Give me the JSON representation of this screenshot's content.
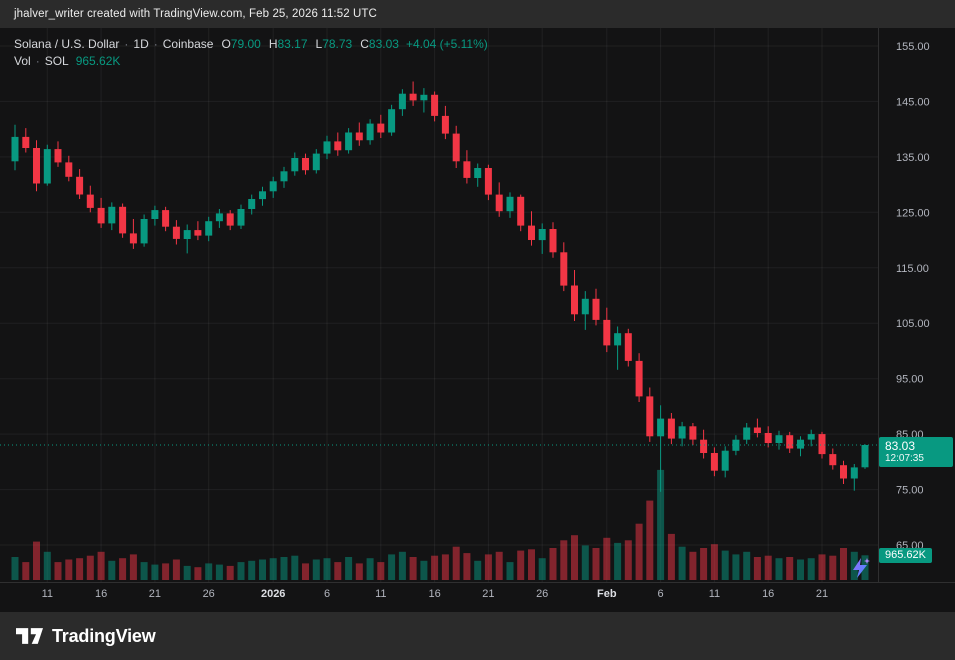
{
  "top_bar": {
    "attribution": "jhalver_writer created with TradingView.com, Feb 25, 2026 11:52 UTC"
  },
  "header": {
    "symbol": "Solana / U.S. Dollar",
    "sep": "·",
    "interval": "1D",
    "exchange": "Coinbase",
    "ohlc": [
      {
        "label": "O",
        "value": "79.00"
      },
      {
        "label": "H",
        "value": "83.17"
      },
      {
        "label": "L",
        "value": "78.73"
      },
      {
        "label": "C",
        "value": "83.03"
      }
    ],
    "change": "+4.04 (+5.11%)",
    "vol_label": "Vol",
    "vol_unit": "SOL",
    "vol_value": "965.62K"
  },
  "price_label": {
    "price": "83.03",
    "countdown": "12:07:35"
  },
  "volume_label": {
    "value": "965.62K"
  },
  "footer": {
    "brand": "TradingView"
  },
  "colors": {
    "up": "#089981",
    "down": "#f23645",
    "background": "#131314",
    "panel": "#2b2b2b",
    "grid": "rgba(255,255,255,0.06)",
    "axis_text": "#b2b5be",
    "axis_text_major": "#dcdee3",
    "label_bg": "#089981"
  },
  "chart_data": {
    "type": "candlestick",
    "title": "Solana / U.S. Dollar, 1D, Coinbase",
    "ylabel": "Price (USD)",
    "y_ticks": [
      155,
      145,
      135,
      125,
      115,
      105,
      95,
      85,
      75,
      65
    ],
    "y_tick_format": "2dp",
    "x_ticks": [
      [
        "11",
        3,
        0
      ],
      [
        "16",
        8,
        0
      ],
      [
        "21",
        13,
        0
      ],
      [
        "26",
        18,
        0
      ],
      [
        "2026",
        24,
        1
      ],
      [
        "6",
        29,
        0
      ],
      [
        "11",
        34,
        0
      ],
      [
        "16",
        39,
        0
      ],
      [
        "21",
        44,
        0
      ],
      [
        "26",
        49,
        0
      ],
      [
        "Feb",
        55,
        1
      ],
      [
        "6",
        60,
        0
      ],
      [
        "11",
        65,
        0
      ],
      [
        "16",
        70,
        0
      ],
      [
        "21",
        75,
        0
      ]
    ],
    "volume_unit": "K",
    "last": {
      "open": 79.0,
      "high": 83.17,
      "low": 78.73,
      "close": 83.03,
      "change": "+4.04 (+5.11%)",
      "volume": "965.62K",
      "countdown": "12:07:35"
    },
    "columns": [
      "date",
      "open",
      "high",
      "low",
      "close",
      "volume_K"
    ],
    "candles": [
      [
        "Dec 8",
        134.2,
        140.8,
        132.6,
        138.6,
        900
      ],
      [
        "Dec 9",
        138.6,
        140.2,
        135.8,
        136.6,
        700
      ],
      [
        "Dec 10",
        136.6,
        138.0,
        128.8,
        130.2,
        1500
      ],
      [
        "Dec 11",
        130.2,
        137.2,
        129.8,
        136.4,
        1100
      ],
      [
        "Dec 12",
        136.4,
        137.8,
        133.2,
        134.0,
        700
      ],
      [
        "Dec 13",
        134.0,
        135.2,
        130.6,
        131.4,
        800
      ],
      [
        "Dec 14",
        131.4,
        132.8,
        127.4,
        128.2,
        850
      ],
      [
        "Dec 15",
        128.2,
        129.8,
        125.0,
        125.8,
        950
      ],
      [
        "Dec 16",
        125.8,
        127.6,
        122.2,
        123.0,
        1100
      ],
      [
        "Dec 17",
        123.0,
        126.8,
        121.8,
        126.0,
        750
      ],
      [
        "Dec 18",
        126.0,
        126.6,
        120.4,
        121.2,
        850
      ],
      [
        "Dec 19",
        121.2,
        123.8,
        118.4,
        119.4,
        1000
      ],
      [
        "Dec 20",
        119.4,
        124.6,
        118.8,
        123.8,
        700
      ],
      [
        "Dec 21",
        123.8,
        126.2,
        122.6,
        125.4,
        600
      ],
      [
        "Dec 22",
        125.4,
        126.0,
        121.6,
        122.4,
        650
      ],
      [
        "Dec 23",
        122.4,
        123.6,
        119.2,
        120.2,
        800
      ],
      [
        "Dec 24",
        120.2,
        122.8,
        117.6,
        121.8,
        550
      ],
      [
        "Dec 25",
        121.8,
        123.4,
        120.0,
        120.8,
        500
      ],
      [
        "Dec 26",
        120.8,
        124.2,
        119.8,
        123.4,
        650
      ],
      [
        "Dec 27",
        123.4,
        125.6,
        122.2,
        124.8,
        600
      ],
      [
        "Dec 28",
        124.8,
        125.4,
        121.8,
        122.6,
        550
      ],
      [
        "Dec 29",
        122.6,
        126.4,
        122.0,
        125.6,
        700
      ],
      [
        "Dec 30",
        125.6,
        128.2,
        124.6,
        127.4,
        750
      ],
      [
        "Dec 31",
        127.4,
        129.6,
        126.2,
        128.8,
        800
      ],
      [
        "Jan 1",
        128.8,
        131.4,
        127.6,
        130.6,
        850
      ],
      [
        "Jan 2",
        130.6,
        133.2,
        129.4,
        132.4,
        900
      ],
      [
        "Jan 3",
        132.4,
        135.8,
        131.6,
        134.8,
        950
      ],
      [
        "Jan 4",
        134.8,
        135.6,
        131.8,
        132.6,
        650
      ],
      [
        "Jan 5",
        132.6,
        136.4,
        132.0,
        135.6,
        800
      ],
      [
        "Jan 6",
        135.6,
        138.8,
        134.6,
        137.8,
        850
      ],
      [
        "Jan 7",
        137.8,
        139.4,
        135.2,
        136.2,
        700
      ],
      [
        "Jan 8",
        136.2,
        140.2,
        135.6,
        139.4,
        900
      ],
      [
        "Jan 9",
        139.4,
        141.2,
        137.0,
        138.0,
        650
      ],
      [
        "Jan 10",
        138.0,
        141.8,
        137.2,
        141.0,
        850
      ],
      [
        "Jan 11",
        141.0,
        142.6,
        138.4,
        139.4,
        700
      ],
      [
        "Jan 12",
        139.4,
        144.4,
        138.8,
        143.6,
        1000
      ],
      [
        "Jan 13",
        143.6,
        147.2,
        142.4,
        146.4,
        1100
      ],
      [
        "Jan 14",
        146.4,
        148.6,
        144.2,
        145.2,
        900
      ],
      [
        "Jan 15",
        145.2,
        147.4,
        143.0,
        146.2,
        750
      ],
      [
        "Jan 16",
        146.2,
        146.8,
        141.4,
        142.4,
        950
      ],
      [
        "Jan 17",
        142.4,
        144.2,
        138.2,
        139.2,
        1000
      ],
      [
        "Jan 18",
        139.2,
        140.6,
        133.0,
        134.2,
        1300
      ],
      [
        "Jan 19",
        134.2,
        136.2,
        130.2,
        131.2,
        1050
      ],
      [
        "Jan 20",
        131.2,
        133.8,
        129.6,
        133.0,
        750
      ],
      [
        "Jan 21",
        133.0,
        133.6,
        127.2,
        128.2,
        1000
      ],
      [
        "Jan 22",
        128.2,
        130.4,
        124.2,
        125.2,
        1100
      ],
      [
        "Jan 23",
        125.2,
        128.6,
        124.0,
        127.8,
        700
      ],
      [
        "Jan 24",
        127.8,
        128.2,
        121.6,
        122.6,
        1150
      ],
      [
        "Jan 25",
        122.6,
        125.2,
        119.0,
        120.0,
        1200
      ],
      [
        "Jan 26",
        120.0,
        123.0,
        117.5,
        122.0,
        850
      ],
      [
        "Jan 27",
        122.0,
        123.2,
        116.8,
        117.8,
        1250
      ],
      [
        "Jan 28",
        117.8,
        119.6,
        110.8,
        111.8,
        1550
      ],
      [
        "Jan 29",
        111.8,
        114.6,
        105.4,
        106.6,
        1750
      ],
      [
        "Jan 30",
        106.6,
        110.8,
        103.8,
        109.4,
        1350
      ],
      [
        "Jan 31",
        109.4,
        111.2,
        104.6,
        105.6,
        1250
      ],
      [
        "Feb 1",
        105.6,
        107.8,
        99.8,
        101.0,
        1650
      ],
      [
        "Feb 2",
        101.0,
        104.4,
        96.6,
        103.2,
        1450
      ],
      [
        "Feb 3",
        103.2,
        104.0,
        97.2,
        98.2,
        1550
      ],
      [
        "Feb 4",
        98.2,
        99.6,
        90.8,
        91.8,
        2200
      ],
      [
        "Feb 5",
        91.8,
        93.4,
        83.6,
        84.6,
        3100
      ],
      [
        "Feb 6",
        84.6,
        90.2,
        74.6,
        87.8,
        4300
      ],
      [
        "Feb 7",
        87.8,
        88.8,
        83.2,
        84.2,
        1800
      ],
      [
        "Feb 8",
        84.2,
        87.2,
        82.8,
        86.4,
        1300
      ],
      [
        "Feb 9",
        86.4,
        87.0,
        83.0,
        84.0,
        1100
      ],
      [
        "Feb 10",
        84.0,
        85.8,
        80.6,
        81.6,
        1250
      ],
      [
        "Feb 11",
        81.6,
        82.6,
        77.4,
        78.4,
        1400
      ],
      [
        "Feb 12",
        78.4,
        82.8,
        77.2,
        82.0,
        1150
      ],
      [
        "Feb 13",
        82.0,
        84.8,
        81.2,
        84.0,
        1000
      ],
      [
        "Feb 14",
        84.0,
        87.0,
        83.2,
        86.2,
        1100
      ],
      [
        "Feb 15",
        86.2,
        87.8,
        84.4,
        85.2,
        900
      ],
      [
        "Feb 16",
        85.2,
        86.4,
        82.6,
        83.4,
        950
      ],
      [
        "Feb 17",
        83.4,
        85.6,
        82.2,
        84.8,
        850
      ],
      [
        "Feb 18",
        84.8,
        85.4,
        81.6,
        82.4,
        900
      ],
      [
        "Feb 19",
        82.4,
        84.6,
        81.0,
        84.0,
        800
      ],
      [
        "Feb 20",
        84.0,
        85.8,
        82.8,
        85.0,
        850
      ],
      [
        "Feb 21",
        85.0,
        85.4,
        80.6,
        81.4,
        1000
      ],
      [
        "Feb 22",
        81.4,
        82.4,
        78.6,
        79.4,
        950
      ],
      [
        "Feb 23",
        79.4,
        80.2,
        76.0,
        77.0,
        1250
      ],
      [
        "Feb 24",
        77.0,
        79.6,
        74.8,
        79.0,
        1100
      ],
      [
        "Feb 25",
        79.0,
        83.17,
        78.73,
        83.03,
        965.62
      ]
    ]
  }
}
